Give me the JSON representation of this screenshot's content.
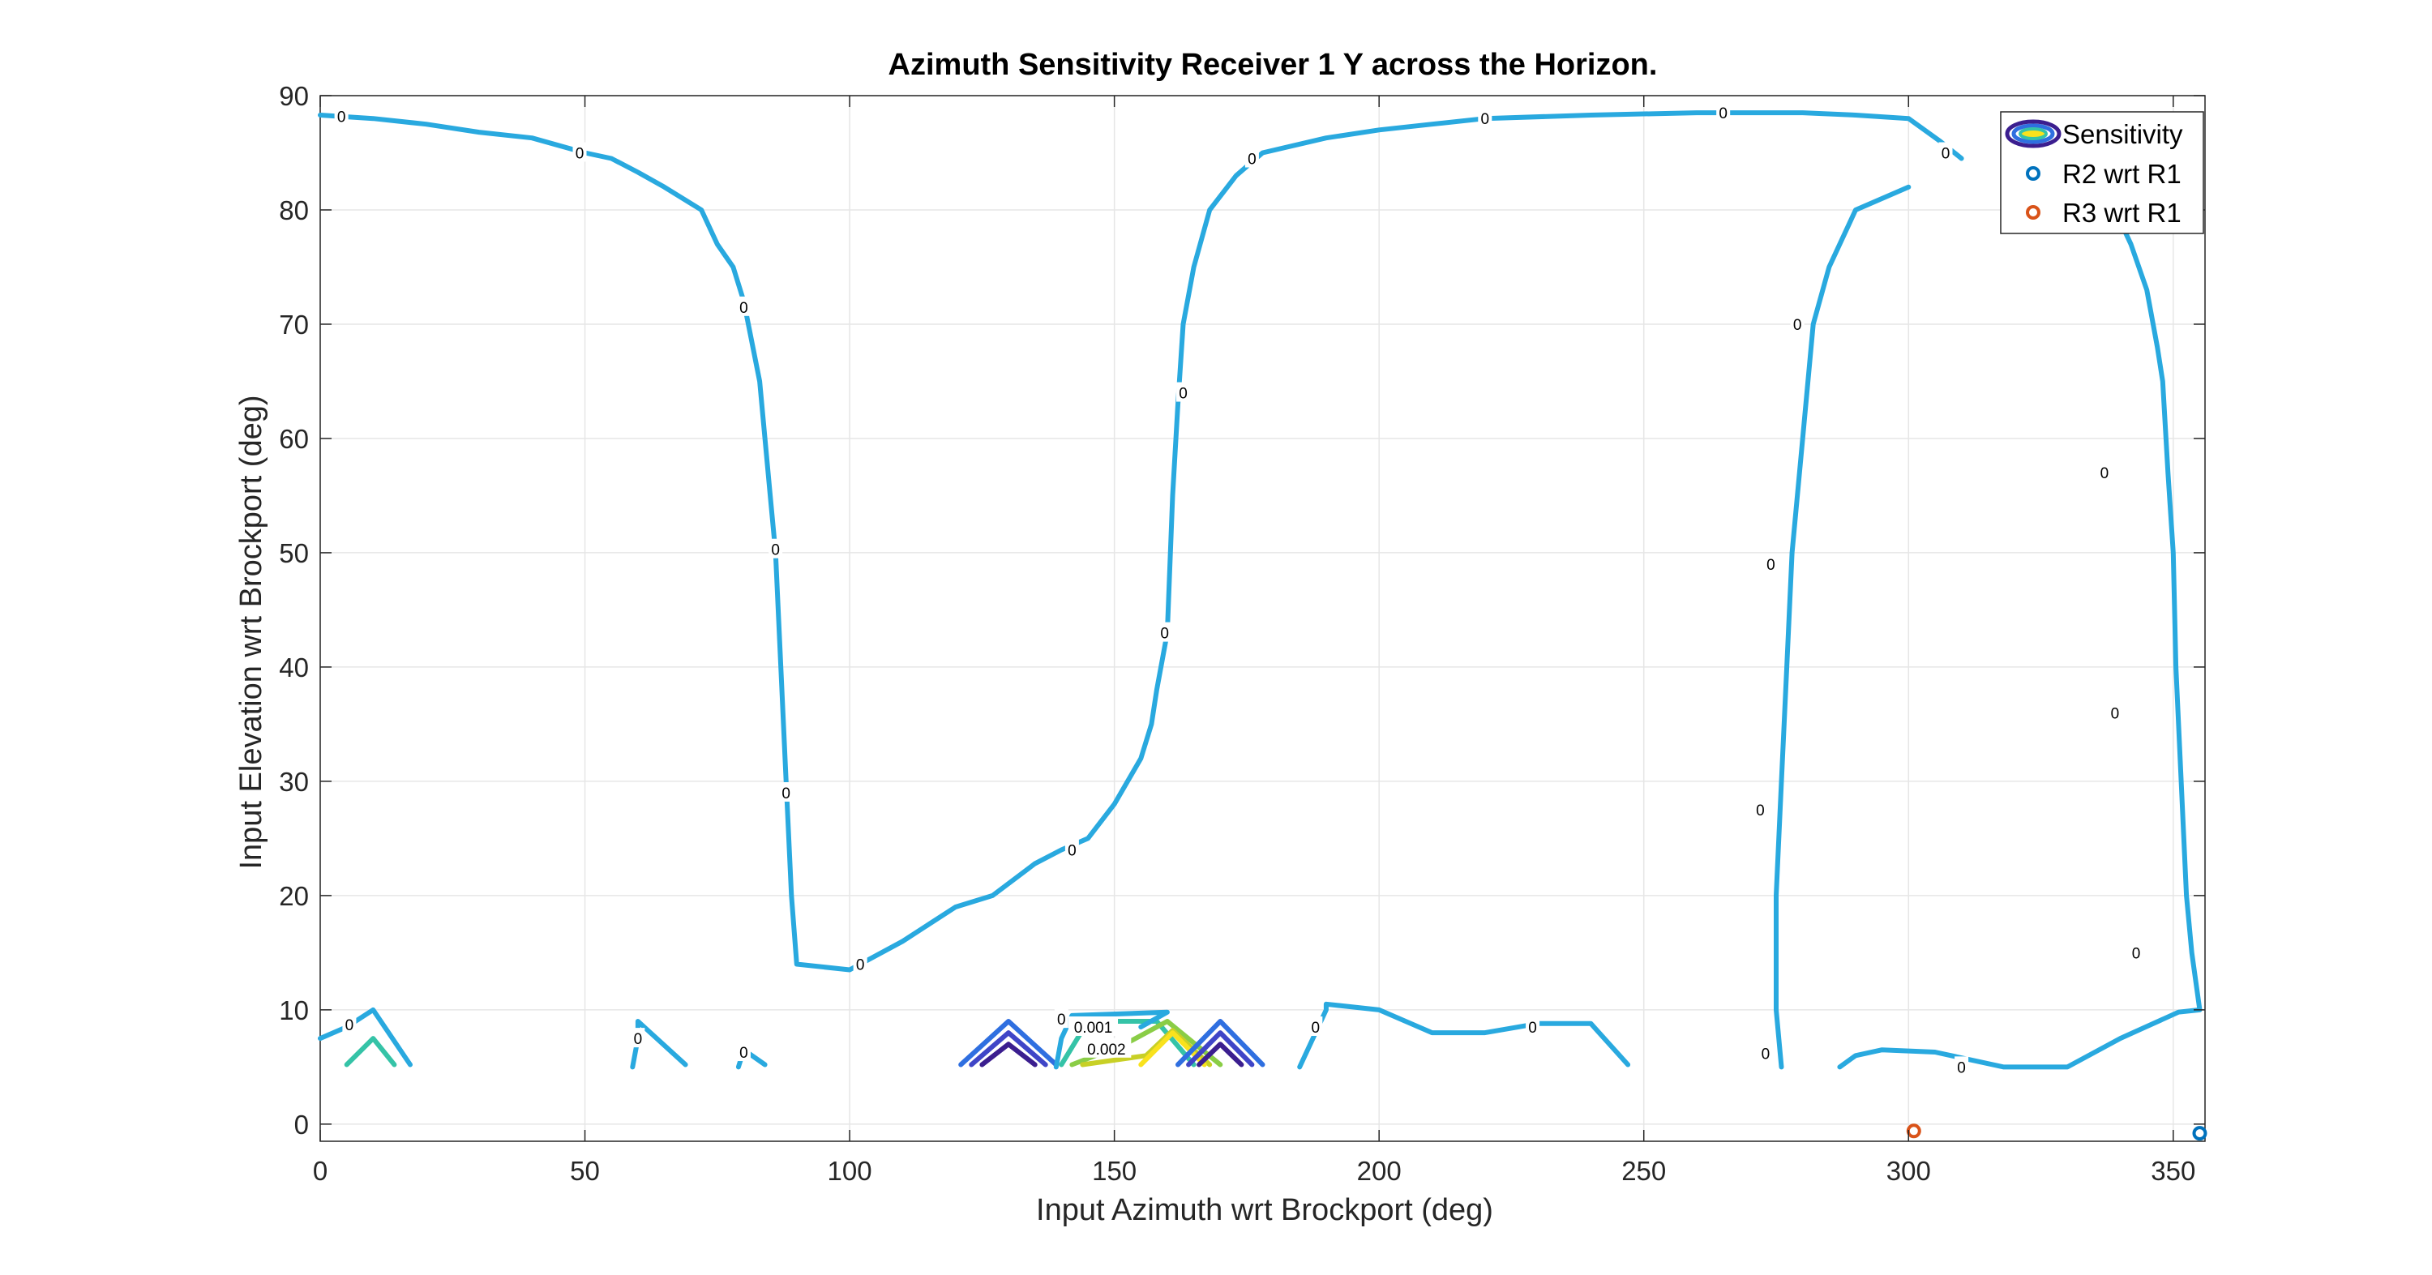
{
  "chart_data": {
    "type": "contour",
    "title": "Azimuth Sensitivity Receiver 1 Y across the Horizon.",
    "xlabel": "Input Azimuth wrt Brockport (deg)",
    "ylabel": "Input Elevation wrt Brockport (deg)",
    "xlim": [
      0,
      356
    ],
    "ylim": [
      -1.5,
      90
    ],
    "xticks": [
      0,
      50,
      100,
      150,
      200,
      250,
      300,
      350
    ],
    "yticks": [
      0,
      10,
      20,
      30,
      40,
      50,
      60,
      70,
      80,
      90
    ],
    "grid": true,
    "legend_position": "top-right",
    "legend": [
      "Sensitivity",
      "R2 wrt R1",
      "R3 wrt R1"
    ],
    "colors": {
      "zero_contour": "#29a9df",
      "r2_marker": "#0072bd",
      "r3_marker": "#d95319",
      "legend_icon": [
        "#3b1e8f",
        "#2f6fe0",
        "#35c3a7",
        "#f9e21d"
      ]
    },
    "zero_contours": [
      [
        [
          0,
          88.3
        ],
        [
          10,
          88
        ],
        [
          20,
          87.5
        ],
        [
          30,
          86.8
        ],
        [
          40,
          86.3
        ],
        [
          50,
          85
        ],
        [
          55,
          84.5
        ],
        [
          60,
          83.3
        ],
        [
          65,
          82
        ],
        [
          72,
          80
        ],
        [
          75,
          77
        ],
        [
          78,
          75
        ],
        [
          80,
          72
        ],
        [
          83,
          65
        ],
        [
          85,
          55
        ],
        [
          86,
          50
        ],
        [
          87,
          40
        ],
        [
          88,
          30
        ],
        [
          89,
          20
        ],
        [
          90,
          14
        ],
        [
          100,
          13.5
        ],
        [
          110,
          16
        ],
        [
          120,
          19
        ],
        [
          127,
          20
        ],
        [
          135,
          22.8
        ],
        [
          140,
          24
        ],
        [
          145,
          25
        ],
        [
          150,
          28
        ],
        [
          155,
          32
        ],
        [
          157,
          35
        ],
        [
          158,
          38
        ],
        [
          160,
          43
        ],
        [
          161,
          55
        ],
        [
          162,
          63
        ],
        [
          163,
          70
        ],
        [
          165,
          75
        ],
        [
          168,
          80
        ],
        [
          173,
          83
        ],
        [
          178,
          85
        ],
        [
          190,
          86.3
        ],
        [
          200,
          87
        ],
        [
          210,
          87.5
        ],
        [
          220,
          88
        ],
        [
          240,
          88.3
        ],
        [
          260,
          88.5
        ],
        [
          280,
          88.5
        ],
        [
          290,
          88.3
        ],
        [
          300,
          88
        ],
        [
          306,
          86
        ],
        [
          310,
          84.5
        ]
      ],
      [
        [
          300,
          82
        ],
        [
          290,
          80
        ],
        [
          285,
          75
        ],
        [
          282,
          70
        ],
        [
          280,
          60
        ],
        [
          278,
          50
        ],
        [
          277,
          40
        ],
        [
          276,
          30
        ],
        [
          275,
          20
        ],
        [
          275,
          10
        ],
        [
          276,
          5
        ]
      ],
      [
        [
          335,
          86
        ],
        [
          340,
          79
        ],
        [
          342,
          77
        ],
        [
          345,
          73
        ],
        [
          347,
          68
        ],
        [
          348,
          65
        ],
        [
          349,
          57
        ],
        [
          350,
          50
        ],
        [
          350.5,
          40
        ],
        [
          351.5,
          30
        ],
        [
          352.5,
          20
        ],
        [
          353.5,
          15
        ],
        [
          355,
          10
        ],
        [
          351,
          9.8
        ],
        [
          340,
          7.5
        ],
        [
          330,
          5
        ],
        [
          320,
          5
        ],
        [
          318,
          5
        ],
        [
          305,
          6.3
        ],
        [
          295,
          6.5
        ],
        [
          290,
          6
        ],
        [
          287,
          5
        ]
      ],
      [
        [
          0,
          7.5
        ],
        [
          5,
          8.5
        ],
        [
          10,
          10
        ],
        [
          17,
          5.2
        ]
      ],
      [
        [
          59,
          5
        ],
        [
          60,
          7.5
        ],
        [
          60,
          9
        ],
        [
          69,
          5.2
        ]
      ],
      [
        [
          79,
          5
        ],
        [
          80,
          6.5
        ],
        [
          84,
          5.2
        ]
      ],
      [
        [
          139,
          5
        ],
        [
          140,
          7.5
        ],
        [
          142,
          9.5
        ],
        [
          160,
          9.8
        ],
        [
          155,
          8.5
        ]
      ],
      [
        [
          185,
          5
        ],
        [
          190,
          10
        ],
        [
          190,
          10.5
        ],
        [
          200,
          10
        ],
        [
          210,
          8
        ],
        [
          220,
          8
        ],
        [
          230,
          8.8
        ],
        [
          240,
          8.8
        ],
        [
          247,
          5.2
        ]
      ]
    ],
    "colored_contours": [
      {
        "level_color": "#35c3a7",
        "points": [
          [
            5,
            5.2
          ],
          [
            10,
            7.5
          ],
          [
            14,
            5.2
          ]
        ]
      },
      {
        "level_color": "#35c3a7",
        "points": [
          [
            140,
            5.2
          ],
          [
            145,
            9
          ],
          [
            158,
            9
          ],
          [
            165,
            5.2
          ]
        ]
      },
      {
        "level_color": "#8acd46",
        "points": [
          [
            142,
            5.2
          ],
          [
            152,
            7
          ],
          [
            160,
            9
          ],
          [
            170,
            5.2
          ]
        ]
      },
      {
        "level_color": "#c8d026",
        "points": [
          [
            144,
            5.2
          ],
          [
            156,
            6
          ],
          [
            161,
            8.2
          ],
          [
            168,
            5.2
          ]
        ]
      },
      {
        "level_color": "#f9e21d",
        "points": [
          [
            155,
            5.2
          ],
          [
            161,
            8
          ],
          [
            167,
            5.2
          ]
        ]
      },
      {
        "level_color": "#2f6fe0",
        "points": [
          [
            121,
            5.2
          ],
          [
            130,
            9
          ],
          [
            139,
            5.2
          ]
        ]
      },
      {
        "level_color": "#3f45c7",
        "points": [
          [
            123,
            5.2
          ],
          [
            130,
            8
          ],
          [
            137,
            5.2
          ]
        ]
      },
      {
        "level_color": "#3b1e8f",
        "points": [
          [
            125,
            5.2
          ],
          [
            130,
            7
          ],
          [
            135,
            5.2
          ]
        ]
      },
      {
        "level_color": "#2f6fe0",
        "points": [
          [
            162,
            5.2
          ],
          [
            170,
            9
          ],
          [
            178,
            5.2
          ]
        ]
      },
      {
        "level_color": "#3f45c7",
        "points": [
          [
            164,
            5.2
          ],
          [
            170,
            8
          ],
          [
            176,
            5.2
          ]
        ]
      },
      {
        "level_color": "#3b1e8f",
        "points": [
          [
            166,
            5.2
          ],
          [
            170,
            7
          ],
          [
            174,
            5.2
          ]
        ]
      }
    ],
    "contour_labels": [
      {
        "x": 4,
        "y": 88.2,
        "text": "0"
      },
      {
        "x": 49,
        "y": 85,
        "text": "0"
      },
      {
        "x": 80,
        "y": 71.5,
        "text": "0"
      },
      {
        "x": 86,
        "y": 50.3,
        "text": "0"
      },
      {
        "x": 88,
        "y": 29,
        "text": "0"
      },
      {
        "x": 102,
        "y": 14,
        "text": "0"
      },
      {
        "x": 142,
        "y": 24,
        "text": "0"
      },
      {
        "x": 159.5,
        "y": 43,
        "text": "0"
      },
      {
        "x": 163,
        "y": 64,
        "text": "0"
      },
      {
        "x": 176,
        "y": 84.5,
        "text": "0"
      },
      {
        "x": 220,
        "y": 88,
        "text": "0"
      },
      {
        "x": 265,
        "y": 88.5,
        "text": "0"
      },
      {
        "x": 307,
        "y": 85,
        "text": "0"
      },
      {
        "x": 279,
        "y": 70,
        "text": "0"
      },
      {
        "x": 274,
        "y": 49,
        "text": "0"
      },
      {
        "x": 272,
        "y": 27.5,
        "text": "0"
      },
      {
        "x": 273,
        "y": 6.2,
        "text": "0"
      },
      {
        "x": 338,
        "y": 80,
        "text": "0"
      },
      {
        "x": 337,
        "y": 57,
        "text": "0"
      },
      {
        "x": 339,
        "y": 36,
        "text": "0"
      },
      {
        "x": 343,
        "y": 15,
        "text": "0"
      },
      {
        "x": 310,
        "y": 5,
        "text": "0"
      },
      {
        "x": 229,
        "y": 8.5,
        "text": "0"
      },
      {
        "x": 188,
        "y": 8.5,
        "text": "0"
      },
      {
        "x": 5.5,
        "y": 8.7,
        "text": "0"
      },
      {
        "x": 60,
        "y": 7.5,
        "text": "0"
      },
      {
        "x": 80,
        "y": 6.3,
        "text": "0"
      },
      {
        "x": 140,
        "y": 9.2,
        "text": "0"
      },
      {
        "x": 146,
        "y": 8.5,
        "text": "0.001"
      },
      {
        "x": 148.5,
        "y": 6.6,
        "text": "0.002"
      }
    ],
    "series": [
      {
        "name": "R2 wrt R1",
        "x": [
          355
        ],
        "y": [
          -0.8
        ]
      },
      {
        "name": "R3 wrt R1",
        "x": [
          301
        ],
        "y": [
          -0.6
        ]
      }
    ]
  }
}
